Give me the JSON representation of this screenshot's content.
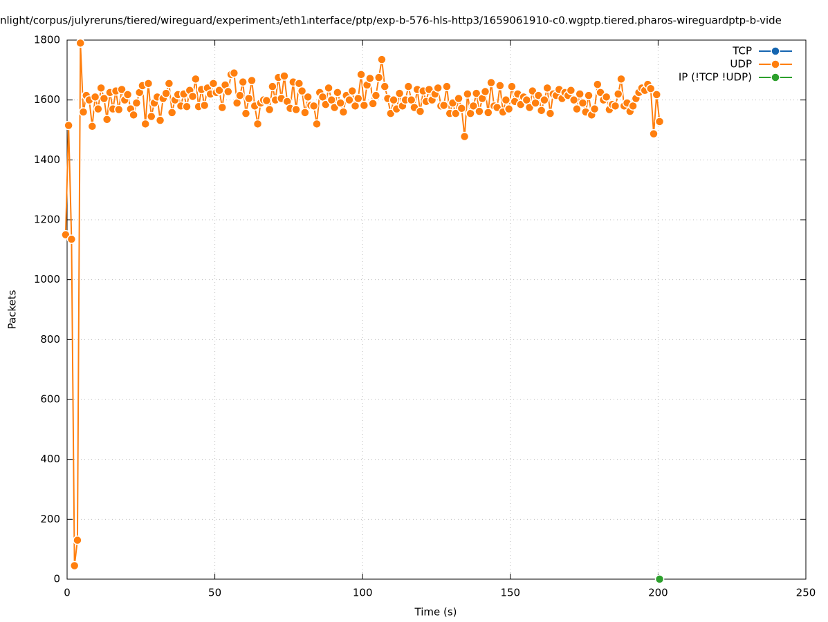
{
  "chart_data": {
    "type": "line",
    "title": "nlight/corpus/julyreruns/tiered/wireguard/experiment₃/eth1ᵢnterface/ptp/exp-b-576-hls-http3/1659061910-c0.wgptp.tiered.pharos-wireguardptp-b-vide",
    "xlabel": "Time (s)",
    "ylabel": "Packets",
    "xlim": [
      0,
      250
    ],
    "xticks": [
      0,
      50,
      100,
      150,
      200,
      250
    ],
    "ylim": [
      0,
      1800
    ],
    "yticks": [
      0,
      200,
      400,
      600,
      800,
      1000,
      1200,
      1400,
      1600,
      1800
    ],
    "grid": true,
    "legend": "top-right",
    "series": [
      {
        "name": "TCP",
        "color": "#1565b0",
        "x": [],
        "values": []
      },
      {
        "name": "UDP",
        "color": "#ff7f0e",
        "x": [
          -0.5,
          0.5,
          1.5,
          2.5,
          3.5,
          4.5,
          5.5,
          6.5,
          7.5,
          8.5,
          9.5,
          10.5,
          11.5,
          12.5,
          13.5,
          14.5,
          15.5,
          16.5,
          17.5,
          18.5,
          19.5,
          20.5,
          21.5,
          22.5,
          23.5,
          24.5,
          25.5,
          26.5,
          27.5,
          28.5,
          29.5,
          30.5,
          31.5,
          32.5,
          33.5,
          34.5,
          35.5,
          36.5,
          37.5,
          38.5,
          39.5,
          40.5,
          41.5,
          42.5,
          43.5,
          44.5,
          45.5,
          46.5,
          47.5,
          48.5,
          49.5,
          50.5,
          51.5,
          52.5,
          53.5,
          54.5,
          55.5,
          56.5,
          57.5,
          58.5,
          59.5,
          60.5,
          61.5,
          62.5,
          63.5,
          64.5,
          65.5,
          66.5,
          67.5,
          68.5,
          69.5,
          70.5,
          71.5,
          72.5,
          73.5,
          74.5,
          75.5,
          76.5,
          77.5,
          78.5,
          79.5,
          80.5,
          81.5,
          82.5,
          83.5,
          84.5,
          85.5,
          86.5,
          87.5,
          88.5,
          89.5,
          90.5,
          91.5,
          92.5,
          93.5,
          94.5,
          95.5,
          96.5,
          97.5,
          98.5,
          99.5,
          100.5,
          101.5,
          102.5,
          103.5,
          104.5,
          105.5,
          106.5,
          107.5,
          108.5,
          109.5,
          110.5,
          111.5,
          112.5,
          113.5,
          114.5,
          115.5,
          116.5,
          117.5,
          118.5,
          119.5,
          120.5,
          121.5,
          122.5,
          123.5,
          124.5,
          125.5,
          126.5,
          127.5,
          128.5,
          129.5,
          130.5,
          131.5,
          132.5,
          133.5,
          134.5,
          135.5,
          136.5,
          137.5,
          138.5,
          139.5,
          140.5,
          141.5,
          142.5,
          143.5,
          144.5,
          145.5,
          146.5,
          147.5,
          148.5,
          149.5,
          150.5,
          151.5,
          152.5,
          153.5,
          154.5,
          155.5,
          156.5,
          157.5,
          158.5,
          159.5,
          160.5,
          161.5,
          162.5,
          163.5,
          164.5,
          165.5,
          166.5,
          167.5,
          168.5,
          169.5,
          170.5,
          171.5,
          172.5,
          173.5,
          174.5,
          175.5,
          176.5,
          177.5,
          178.5,
          179.5,
          180.5,
          181.5,
          182.5,
          183.5,
          184.5,
          185.5,
          186.5,
          187.5,
          188.5,
          189.5,
          190.5,
          191.5,
          192.5,
          193.5,
          194.5,
          195.5,
          196.5,
          197.5,
          198.5,
          199.5,
          200.5
        ],
        "values": [
          1150,
          1515,
          1135,
          45,
          130,
          1790,
          1560,
          1615,
          1600,
          1512,
          1610,
          1570,
          1640,
          1605,
          1535,
          1625,
          1570,
          1630,
          1568,
          1635,
          1600,
          1618,
          1570,
          1550,
          1590,
          1625,
          1648,
          1520,
          1655,
          1545,
          1590,
          1610,
          1532,
          1605,
          1622,
          1655,
          1558,
          1600,
          1618,
          1580,
          1620,
          1578,
          1632,
          1612,
          1670,
          1578,
          1635,
          1582,
          1640,
          1620,
          1655,
          1625,
          1632,
          1575,
          1650,
          1628,
          1685,
          1690,
          1590,
          1615,
          1660,
          1555,
          1605,
          1665,
          1580,
          1520,
          1590,
          1600,
          1598,
          1568,
          1645,
          1600,
          1675,
          1605,
          1680,
          1595,
          1572,
          1660,
          1568,
          1655,
          1630,
          1558,
          1610,
          1582,
          1580,
          1520,
          1625,
          1610,
          1585,
          1640,
          1600,
          1575,
          1625,
          1590,
          1560,
          1615,
          1600,
          1630,
          1580,
          1605,
          1685,
          1582,
          1650,
          1672,
          1588,
          1615,
          1675,
          1735,
          1645,
          1605,
          1555,
          1600,
          1570,
          1622,
          1580,
          1600,
          1645,
          1600,
          1575,
          1635,
          1562,
          1630,
          1595,
          1635,
          1600,
          1620,
          1640,
          1580,
          1582,
          1645,
          1555,
          1590,
          1555,
          1605,
          1572,
          1478,
          1620,
          1555,
          1580,
          1622,
          1562,
          1605,
          1628,
          1558,
          1658,
          1580,
          1575,
          1648,
          1560,
          1600,
          1570,
          1645,
          1595,
          1620,
          1585,
          1610,
          1600,
          1575,
          1630,
          1590,
          1615,
          1565,
          1600,
          1640,
          1555,
          1620,
          1615,
          1635,
          1605,
          1625,
          1615,
          1632,
          1600,
          1570,
          1620,
          1590,
          1560,
          1615,
          1550,
          1570,
          1652,
          1625,
          1600,
          1610,
          1568,
          1585,
          1580,
          1620,
          1670,
          1580,
          1590,
          1562,
          1580,
          1605,
          1625,
          1640,
          1632,
          1652,
          1638,
          1487,
          1618,
          1528
        ]
      },
      {
        "name": "IP (!TCP  !UDP)",
        "color": "#2ca02c",
        "x": [
          200.5
        ],
        "values": [
          0
        ]
      }
    ]
  }
}
